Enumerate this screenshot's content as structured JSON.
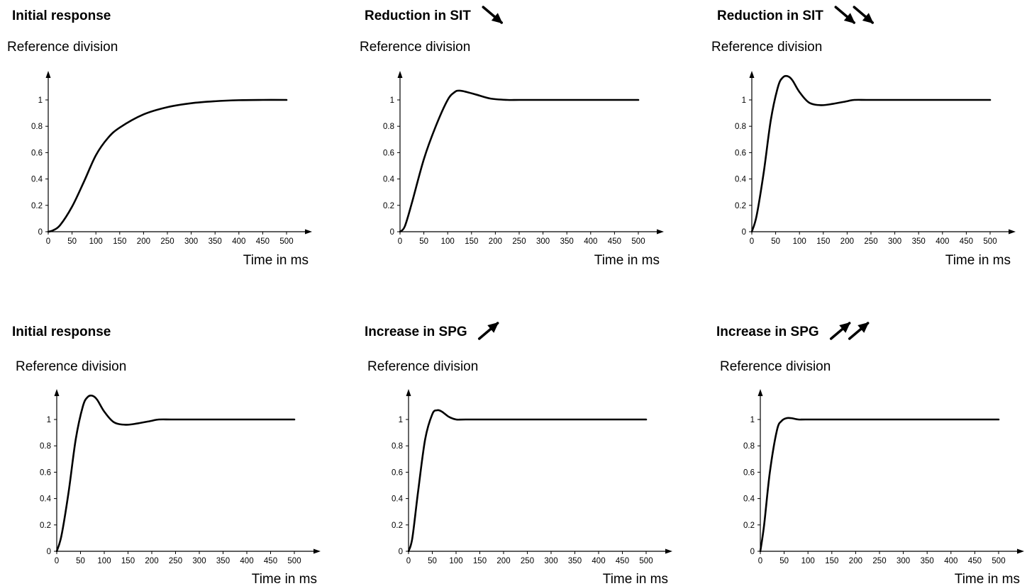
{
  "chart_data": [
    {
      "type": "line",
      "title": "Initial response",
      "ylabel": "Reference division",
      "xlabel": "Time in ms",
      "title_arrows": {
        "direction": "down",
        "count": 0
      },
      "xlim": [
        0,
        500
      ],
      "ylim": [
        0,
        1.2
      ],
      "xticks": [
        "0",
        "50",
        "100",
        "150",
        "200",
        "250",
        "300",
        "350",
        "400",
        "450",
        "500"
      ],
      "yticks": [
        "0",
        "0.2",
        "0.4",
        "0.6",
        "0.8",
        "1"
      ],
      "grid": false,
      "series": [
        {
          "x": [
            0,
            10,
            25,
            50,
            75,
            100,
            125,
            150,
            200,
            250,
            300,
            350,
            400,
            450,
            500
          ],
          "y": [
            0,
            0.01,
            0.05,
            0.19,
            0.38,
            0.58,
            0.71,
            0.79,
            0.89,
            0.945,
            0.975,
            0.99,
            0.998,
            1.0,
            1.0
          ]
        }
      ]
    },
    {
      "type": "line",
      "title": "Reduction in SIT",
      "ylabel": "Reference division",
      "xlabel": "Time in ms",
      "title_arrows": {
        "direction": "down",
        "count": 1
      },
      "xlim": [
        0,
        500
      ],
      "ylim": [
        0,
        1.2
      ],
      "xticks": [
        "0",
        "50",
        "100",
        "150",
        "200",
        "250",
        "300",
        "350",
        "400",
        "450",
        "500"
      ],
      "yticks": [
        "0",
        "0.2",
        "0.4",
        "0.6",
        "0.8",
        "1"
      ],
      "grid": false,
      "series": [
        {
          "x": [
            0,
            10,
            25,
            50,
            75,
            100,
            115,
            125,
            140,
            160,
            190,
            225,
            250,
            300,
            400,
            500
          ],
          "y": [
            0,
            0.04,
            0.22,
            0.55,
            0.8,
            1.0,
            1.06,
            1.07,
            1.06,
            1.04,
            1.01,
            1.0,
            1.0,
            1.0,
            1.0,
            1.0
          ]
        }
      ]
    },
    {
      "type": "line",
      "title": "Reduction in SIT",
      "ylabel": "Reference division",
      "xlabel": "Time in ms",
      "title_arrows": {
        "direction": "down",
        "count": 2
      },
      "xlim": [
        0,
        500
      ],
      "ylim": [
        0,
        1.2
      ],
      "xticks": [
        "0",
        "50",
        "100",
        "150",
        "200",
        "250",
        "300",
        "350",
        "400",
        "450",
        "500"
      ],
      "yticks": [
        "0",
        "0.2",
        "0.4",
        "0.6",
        "0.8",
        "1"
      ],
      "grid": false,
      "series": [
        {
          "x": [
            0,
            10,
            25,
            40,
            55,
            65,
            75,
            85,
            100,
            120,
            145,
            170,
            200,
            215,
            250,
            350,
            500
          ],
          "y": [
            0,
            0.12,
            0.45,
            0.85,
            1.1,
            1.17,
            1.18,
            1.15,
            1.06,
            0.98,
            0.96,
            0.97,
            0.99,
            1.0,
            1.0,
            1.0,
            1.0
          ]
        }
      ]
    },
    {
      "type": "line",
      "title": "Initial response",
      "ylabel": "Reference division",
      "xlabel": "Time in ms",
      "title_arrows": {
        "direction": "up",
        "count": 0
      },
      "xlim": [
        0,
        500
      ],
      "ylim": [
        0,
        1.2
      ],
      "xticks": [
        "0",
        "50",
        "100",
        "150",
        "200",
        "250",
        "300",
        "350",
        "400",
        "450",
        "500"
      ],
      "yticks": [
        "0",
        "0.2",
        "0.4",
        "0.6",
        "0.8",
        "1"
      ],
      "grid": false,
      "series": [
        {
          "x": [
            0,
            10,
            25,
            40,
            55,
            65,
            75,
            85,
            100,
            120,
            145,
            170,
            200,
            215,
            250,
            350,
            500
          ],
          "y": [
            0,
            0.12,
            0.45,
            0.85,
            1.1,
            1.17,
            1.18,
            1.15,
            1.06,
            0.98,
            0.96,
            0.97,
            0.99,
            1.0,
            1.0,
            1.0,
            1.0
          ]
        }
      ]
    },
    {
      "type": "line",
      "title": "Increase in SPG",
      "ylabel": "Reference division",
      "xlabel": "Time in ms",
      "title_arrows": {
        "direction": "up",
        "count": 1
      },
      "xlim": [
        0,
        500
      ],
      "ylim": [
        0,
        1.2
      ],
      "xticks": [
        "0",
        "50",
        "100",
        "150",
        "200",
        "250",
        "300",
        "350",
        "400",
        "450",
        "500"
      ],
      "yticks": [
        "0",
        "0.2",
        "0.4",
        "0.6",
        "0.8",
        "1"
      ],
      "grid": false,
      "series": [
        {
          "x": [
            0,
            8,
            20,
            35,
            50,
            60,
            70,
            85,
            100,
            120,
            200,
            500
          ],
          "y": [
            0,
            0.1,
            0.45,
            0.85,
            1.04,
            1.07,
            1.06,
            1.02,
            1.0,
            1.0,
            1.0,
            1.0
          ]
        }
      ]
    },
    {
      "type": "line",
      "title": "Increase in SPG",
      "ylabel": "Reference division",
      "xlabel": "Time in ms",
      "title_arrows": {
        "direction": "up",
        "count": 2
      },
      "xlim": [
        0,
        500
      ],
      "ylim": [
        0,
        1.2
      ],
      "xticks": [
        "0",
        "50",
        "100",
        "150",
        "200",
        "250",
        "300",
        "350",
        "400",
        "450",
        "500"
      ],
      "yticks": [
        "0",
        "0.2",
        "0.4",
        "0.6",
        "0.8",
        "1"
      ],
      "grid": false,
      "series": [
        {
          "x": [
            0,
            8,
            20,
            35,
            45,
            55,
            65,
            80,
            95,
            150,
            300,
            500
          ],
          "y": [
            0,
            0.2,
            0.6,
            0.92,
            0.99,
            1.01,
            1.01,
            1.0,
            1.0,
            1.0,
            1.0,
            1.0
          ]
        }
      ]
    }
  ]
}
